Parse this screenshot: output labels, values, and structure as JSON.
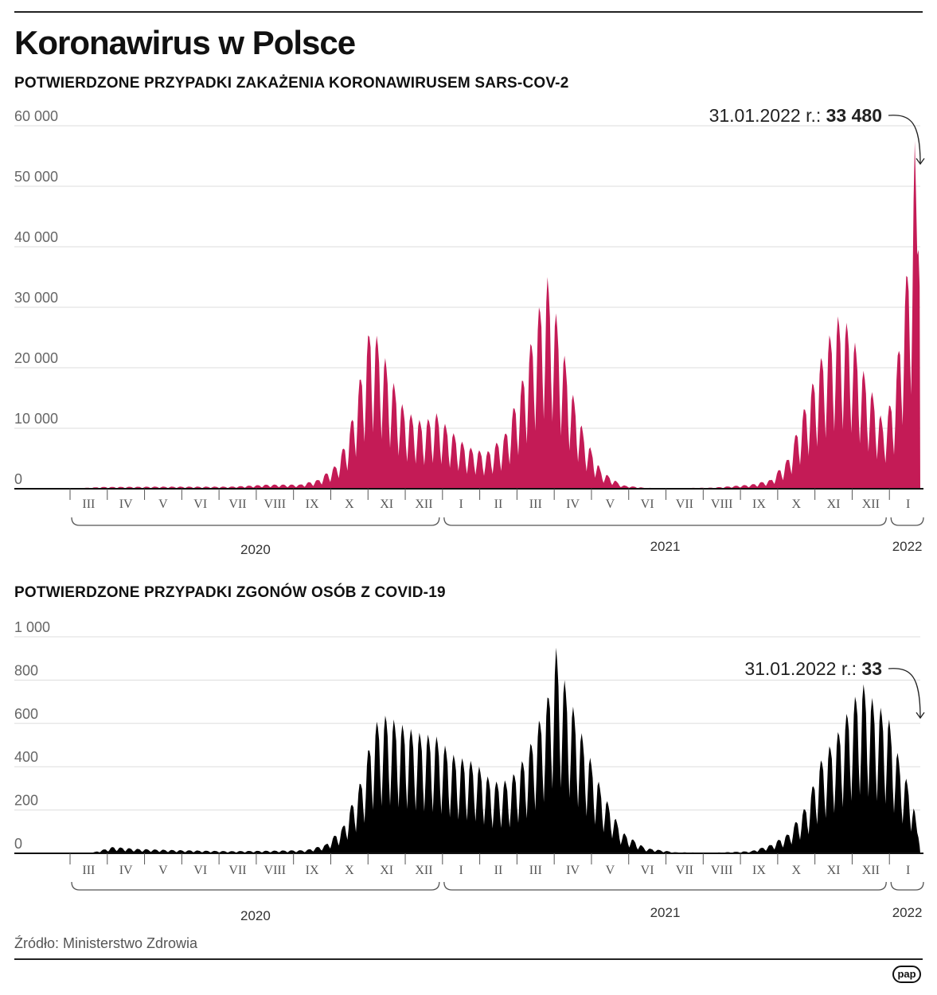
{
  "title": "Koronawirus w Polsce",
  "source": "Źródło: Ministerstwo Zdrowia",
  "logo": "pap",
  "colors": {
    "cases": "#c41b56",
    "deaths": "#000000",
    "grid": "#dddddd"
  },
  "chart_data": [
    {
      "type": "area",
      "title": "POTWIERDZONE PRZYPADKI ZAKAŻENIA KORONAWIRUSEM SARS-COV-2",
      "color": "#c41b56",
      "ylim": [
        0,
        60000
      ],
      "yticks": [
        0,
        10000,
        20000,
        30000,
        40000,
        50000,
        60000
      ],
      "ytick_labels": [
        "0",
        "10 000",
        "20 000",
        "30 000",
        "40 000",
        "50 000",
        "60 000"
      ],
      "x_start": "2020-03-01",
      "x_end": "2022-01-31",
      "months": [
        "III",
        "IV",
        "V",
        "VI",
        "VII",
        "VIII",
        "IX",
        "X",
        "XI",
        "XII",
        "I",
        "II",
        "III",
        "IV",
        "V",
        "VI",
        "VII",
        "VIII",
        "IX",
        "X",
        "XI",
        "XII",
        "I"
      ],
      "years": [
        {
          "label": "2020",
          "from": 0,
          "to": 10
        },
        {
          "label": "2021",
          "from": 10,
          "to": 22
        },
        {
          "label": "2022",
          "from": 22,
          "to": 23
        }
      ],
      "series_keypoints": [
        [
          "2020-03-01",
          0
        ],
        [
          "2020-04-01",
          300
        ],
        [
          "2020-05-15",
          350
        ],
        [
          "2020-06-15",
          350
        ],
        [
          "2020-07-15",
          350
        ],
        [
          "2020-08-15",
          700
        ],
        [
          "2020-09-10",
          700
        ],
        [
          "2020-09-25",
          1500
        ],
        [
          "2020-10-10",
          4000
        ],
        [
          "2020-10-20",
          9000
        ],
        [
          "2020-10-31",
          20000
        ],
        [
          "2020-11-07",
          27500
        ],
        [
          "2020-11-15",
          24000
        ],
        [
          "2020-11-25",
          18000
        ],
        [
          "2020-12-05",
          13000
        ],
        [
          "2020-12-20",
          11000
        ],
        [
          "2020-12-31",
          12500
        ],
        [
          "2021-01-10",
          10000
        ],
        [
          "2021-01-25",
          7000
        ],
        [
          "2021-02-10",
          6000
        ],
        [
          "2021-02-25",
          9000
        ],
        [
          "2021-03-10",
          17000
        ],
        [
          "2021-03-25",
          30000
        ],
        [
          "2021-04-01",
          35000
        ],
        [
          "2021-04-08",
          29000
        ],
        [
          "2021-04-20",
          17000
        ],
        [
          "2021-05-01",
          9000
        ],
        [
          "2021-05-15",
          3000
        ],
        [
          "2021-06-01",
          600
        ],
        [
          "2021-06-20",
          150
        ],
        [
          "2021-07-15",
          100
        ],
        [
          "2021-08-15",
          200
        ],
        [
          "2021-09-15",
          700
        ],
        [
          "2021-10-01",
          1500
        ],
        [
          "2021-10-15",
          5000
        ],
        [
          "2021-10-31",
          15000
        ],
        [
          "2021-11-15",
          24000
        ],
        [
          "2021-11-25",
          28500
        ],
        [
          "2021-12-05",
          27000
        ],
        [
          "2021-12-15",
          20000
        ],
        [
          "2021-12-25",
          15000
        ],
        [
          "2022-01-01",
          11000
        ],
        [
          "2022-01-10",
          16000
        ],
        [
          "2022-01-18",
          32000
        ],
        [
          "2022-01-23",
          40000
        ],
        [
          "2022-01-27",
          57500
        ],
        [
          "2022-01-31",
          33480
        ]
      ],
      "annotation": {
        "date": "31.01.2022 r.: ",
        "value": "33 480"
      }
    },
    {
      "type": "area",
      "title": "POTWIERDZONE PRZYPADKI ZGONÓW OSÓB Z COVID-19",
      "color": "#000000",
      "ylim": [
        0,
        1000
      ],
      "yticks": [
        0,
        200,
        400,
        600,
        800,
        1000
      ],
      "ytick_labels": [
        "0",
        "200",
        "400",
        "600",
        "800",
        "1 000"
      ],
      "x_start": "2020-03-01",
      "x_end": "2022-01-31",
      "months": [
        "III",
        "IV",
        "V",
        "VI",
        "VII",
        "VIII",
        "IX",
        "X",
        "XI",
        "XII",
        "I",
        "II",
        "III",
        "IV",
        "V",
        "VI",
        "VII",
        "VIII",
        "IX",
        "X",
        "XI",
        "XII",
        "I"
      ],
      "years": [
        {
          "label": "2020",
          "from": 0,
          "to": 10
        },
        {
          "label": "2021",
          "from": 10,
          "to": 22
        },
        {
          "label": "2022",
          "from": 22,
          "to": 23
        }
      ],
      "series_keypoints": [
        [
          "2020-03-01",
          0
        ],
        [
          "2020-03-25",
          5
        ],
        [
          "2020-04-10",
          30
        ],
        [
          "2020-05-01",
          20
        ],
        [
          "2020-06-01",
          15
        ],
        [
          "2020-07-15",
          10
        ],
        [
          "2020-08-15",
          12
        ],
        [
          "2020-09-15",
          15
        ],
        [
          "2020-10-01",
          40
        ],
        [
          "2020-10-15",
          120
        ],
        [
          "2020-10-31",
          350
        ],
        [
          "2020-11-10",
          600
        ],
        [
          "2020-11-20",
          640
        ],
        [
          "2020-12-01",
          600
        ],
        [
          "2020-12-15",
          560
        ],
        [
          "2020-12-31",
          540
        ],
        [
          "2021-01-15",
          450
        ],
        [
          "2021-02-01",
          420
        ],
        [
          "2021-02-15",
          330
        ],
        [
          "2021-03-01",
          340
        ],
        [
          "2021-03-15",
          460
        ],
        [
          "2021-04-01",
          720
        ],
        [
          "2021-04-08",
          950
        ],
        [
          "2021-04-15",
          800
        ],
        [
          "2021-05-01",
          520
        ],
        [
          "2021-05-15",
          300
        ],
        [
          "2021-06-01",
          100
        ],
        [
          "2021-06-20",
          25
        ],
        [
          "2021-07-15",
          5
        ],
        [
          "2021-08-15",
          3
        ],
        [
          "2021-09-15",
          10
        ],
        [
          "2021-10-01",
          40
        ],
        [
          "2021-10-15",
          90
        ],
        [
          "2021-10-31",
          230
        ],
        [
          "2021-11-10",
          420
        ],
        [
          "2021-11-25",
          560
        ],
        [
          "2021-12-05",
          680
        ],
        [
          "2021-12-15",
          790
        ],
        [
          "2021-12-25",
          700
        ],
        [
          "2022-01-05",
          640
        ],
        [
          "2022-01-15",
          420
        ],
        [
          "2022-01-25",
          270
        ],
        [
          "2022-01-31",
          33
        ]
      ],
      "annotation": {
        "date": "31.01.2022 r.: ",
        "value": "33"
      }
    }
  ]
}
